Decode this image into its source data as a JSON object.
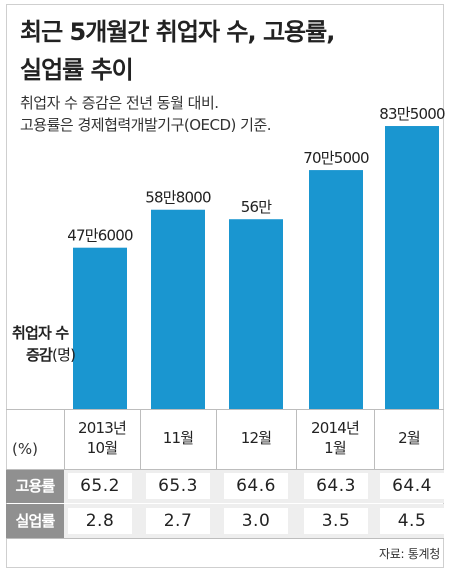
{
  "header": {
    "title_line1": "최근 5개월간 취업자 수, 고용률,",
    "title_line2": "실업률 추이",
    "note_line1": "취업자 수 증감은 전년 동월 대비.",
    "note_line2": "고용률은 경제협력개발기구(OECD) 기준."
  },
  "colors": {
    "bar": "#1a96d0",
    "row_header": "#909090",
    "row_band": "#eeeeee"
  },
  "chart_data": {
    "type": "bar",
    "categories": [
      "2013년 10월",
      "11월",
      "12월",
      "2014년 1월",
      "2월"
    ],
    "category_lines": [
      [
        "2013년",
        "10월"
      ],
      [
        "11월"
      ],
      [
        "12월"
      ],
      [
        "2014년",
        "1월"
      ],
      [
        "2월"
      ]
    ],
    "values": [
      476000,
      588000,
      560000,
      705000,
      835000
    ],
    "data_labels": [
      "47만6000",
      "58만8000",
      "56만",
      "70만5000",
      "83만5000"
    ],
    "ylabel_line1": "취업자 수",
    "ylabel_line2": "증감",
    "ylabel_unit": "(명)",
    "ylim": [
      0,
      900000
    ],
    "grid": false,
    "table": {
      "unit_label": "(%)",
      "rows": [
        {
          "name": "고용률",
          "values": [
            "65.2",
            "65.3",
            "64.6",
            "64.3",
            "64.4"
          ]
        },
        {
          "name": "실업률",
          "values": [
            "2.8",
            "2.7",
            "3.0",
            "3.5",
            "4.5"
          ]
        }
      ]
    }
  },
  "source": "자료: 통계청"
}
